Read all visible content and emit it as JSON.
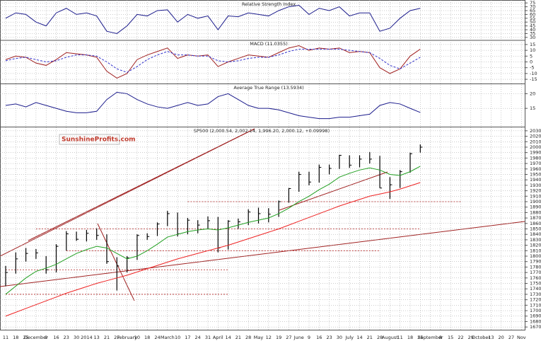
{
  "chart_data": [
    {
      "type": "line",
      "title": "Relative Strength Index",
      "ylim": [
        28,
        77
      ],
      "yticks": [
        30,
        35,
        40,
        45,
        50,
        55,
        60,
        65,
        70,
        75
      ],
      "series": [
        {
          "color": "#1c1c8c",
          "values": [
            55,
            62,
            60,
            50,
            45,
            62,
            68,
            60,
            62,
            58,
            38,
            35,
            45,
            60,
            58,
            65,
            66,
            50,
            60,
            55,
            58,
            40,
            58,
            57,
            62,
            60,
            58,
            65,
            70,
            72,
            60,
            68,
            65,
            70,
            58,
            62,
            62,
            38,
            42,
            55,
            65,
            68
          ]
        }
      ]
    },
    {
      "type": "line",
      "title": "MACD (11.0355)",
      "ylim": [
        -18,
        18
      ],
      "yticks": [
        15,
        10,
        5,
        0,
        -5,
        -10,
        -15
      ],
      "series": [
        {
          "color": "#a02020",
          "values": [
            2,
            5,
            4,
            -1,
            -3,
            2,
            8,
            7,
            6,
            4,
            -8,
            -14,
            -10,
            2,
            6,
            9,
            12,
            3,
            6,
            5,
            6,
            -4,
            0,
            3,
            6,
            5,
            4,
            8,
            12,
            14,
            10,
            12,
            11,
            12,
            8,
            9,
            8,
            -5,
            -10,
            -6,
            5,
            11
          ]
        },
        {
          "color": "#3333cc",
          "dashed": true,
          "values": [
            1,
            3,
            4,
            2,
            0,
            1,
            4,
            6,
            6,
            5,
            0,
            -6,
            -9,
            -4,
            2,
            6,
            9,
            6,
            6,
            5,
            5,
            1,
            0,
            1,
            3,
            4,
            4,
            6,
            9,
            11,
            11,
            11,
            11,
            11,
            10,
            9,
            8,
            3,
            -3,
            -6,
            -1,
            4
          ]
        }
      ]
    },
    {
      "type": "line",
      "title": "Average True Range (13.5934)",
      "ylim": [
        9,
        23
      ],
      "yticks": [
        20,
        15
      ],
      "series": [
        {
          "color": "#1c1c8c",
          "values": [
            16,
            16.5,
            15.5,
            17,
            16,
            15,
            14,
            13.5,
            13.5,
            14,
            18,
            20.5,
            20,
            18,
            16.5,
            15.5,
            15,
            16,
            17,
            16,
            16.5,
            19,
            20,
            18,
            16,
            15,
            15,
            14.5,
            13.5,
            12.5,
            12,
            11.5,
            11.5,
            12,
            12,
            12.5,
            13,
            16,
            17,
            16.5,
            15,
            13.6
          ]
        }
      ]
    },
    {
      "type": "ohlc",
      "title": "SP500 (2,000.54, 2,002.14, 1,996.20, 2,000.12, +0.09998)",
      "logo": "SunshineProfits.com",
      "ylim": [
        1665,
        2035
      ],
      "yticks": [
        1670,
        1680,
        1690,
        1700,
        1710,
        1720,
        1730,
        1740,
        1750,
        1760,
        1770,
        1780,
        1790,
        1800,
        1810,
        1820,
        1830,
        1840,
        1850,
        1860,
        1870,
        1880,
        1890,
        1900,
        1910,
        1920,
        1930,
        1940,
        1950,
        1960,
        1970,
        1980,
        1990,
        2000,
        2010,
        2020,
        2030
      ],
      "categories": [
        "11",
        "18",
        "25",
        "December",
        "9",
        "16",
        "23",
        "30",
        "2014",
        "13",
        "21",
        "27",
        "February",
        "10",
        "18",
        "24",
        "March",
        "10",
        "17",
        "24",
        "31",
        "April",
        "14",
        "21",
        "28",
        "May",
        "12",
        "19",
        "27",
        "June",
        "9",
        "16",
        "23",
        "30",
        "July",
        "14",
        "21",
        "28",
        "August",
        "11",
        "18",
        "25",
        "September",
        "8",
        "15",
        "22",
        "29",
        "October",
        "13",
        "20",
        "27",
        "Nov"
      ],
      "high": [
        1782,
        1807,
        1815,
        1813,
        1800,
        1822,
        1846,
        1845,
        1848,
        1851,
        1840,
        1798,
        1800,
        1840,
        1842,
        1862,
        1883,
        1880,
        1870,
        1866,
        1873,
        1872,
        1866,
        1869,
        1886,
        1889,
        1888,
        1902,
        1925,
        1955,
        1955,
        1968,
        1968,
        1986,
        1985,
        1985,
        1991,
        1984,
        1945,
        1958,
        1990,
        2005,
        null,
        null,
        null,
        null,
        null,
        null,
        null,
        null,
        null,
        null
      ],
      "low": [
        1745,
        1768,
        1790,
        1795,
        1768,
        1770,
        1810,
        1828,
        1827,
        1830,
        1786,
        1737,
        1770,
        1793,
        1830,
        1837,
        1855,
        1836,
        1840,
        1842,
        1850,
        1807,
        1812,
        1850,
        1857,
        1860,
        1862,
        1872,
        1898,
        1918,
        1930,
        1935,
        1950,
        1960,
        1962,
        1963,
        1970,
        1925,
        1905,
        1925,
        1953,
        1990,
        null,
        null,
        null,
        null,
        null,
        null,
        null,
        null,
        null,
        null
      ],
      "close": [
        1770,
        1795,
        1805,
        1806,
        1775,
        1818,
        1841,
        1831,
        1842,
        1838,
        1790,
        1782,
        1797,
        1838,
        1836,
        1859,
        1878,
        1841,
        1866,
        1857,
        1865,
        1815,
        1864,
        1863,
        1881,
        1878,
        1877,
        1900,
        1924,
        1950,
        1936,
        1963,
        1961,
        1985,
        1967,
        1978,
        1978,
        1925,
        1931,
        1955,
        1988,
        2000,
        null,
        null,
        null,
        null,
        null,
        null,
        null,
        null,
        null,
        null
      ],
      "series": [
        {
          "color": "#22a022",
          "values": [
            1730,
            1745,
            1760,
            1772,
            1778,
            1785,
            1795,
            1805,
            1812,
            1818,
            1815,
            1805,
            1795,
            1800,
            1810,
            1822,
            1835,
            1840,
            1845,
            1848,
            1850,
            1848,
            1852,
            1857,
            1862,
            1866,
            1870,
            1878,
            1888,
            1900,
            1910,
            1922,
            1932,
            1945,
            1952,
            1958,
            1962,
            1958,
            1950,
            1948,
            1955,
            1965,
            null,
            null,
            null,
            null,
            null,
            null,
            null,
            null,
            null,
            null
          ]
        },
        {
          "color": "#ee2222",
          "values": [
            1690,
            1697,
            1704,
            1711,
            1718,
            1725,
            1732,
            1738,
            1744,
            1750,
            1755,
            1760,
            1765,
            1771,
            1777,
            1783,
            1789,
            1795,
            1800,
            1805,
            1810,
            1815,
            1820,
            1826,
            1832,
            1838,
            1844,
            1850,
            1857,
            1864,
            1871,
            1878,
            1885,
            1892,
            1898,
            1904,
            1910,
            1914,
            1918,
            1923,
            1929,
            1935,
            null,
            null,
            null,
            null,
            null,
            null,
            null,
            null,
            null,
            null
          ]
        }
      ],
      "hlines": [
        1900,
        1850,
        1810,
        1775,
        1730
      ],
      "hline_color": "#b02020"
    }
  ]
}
